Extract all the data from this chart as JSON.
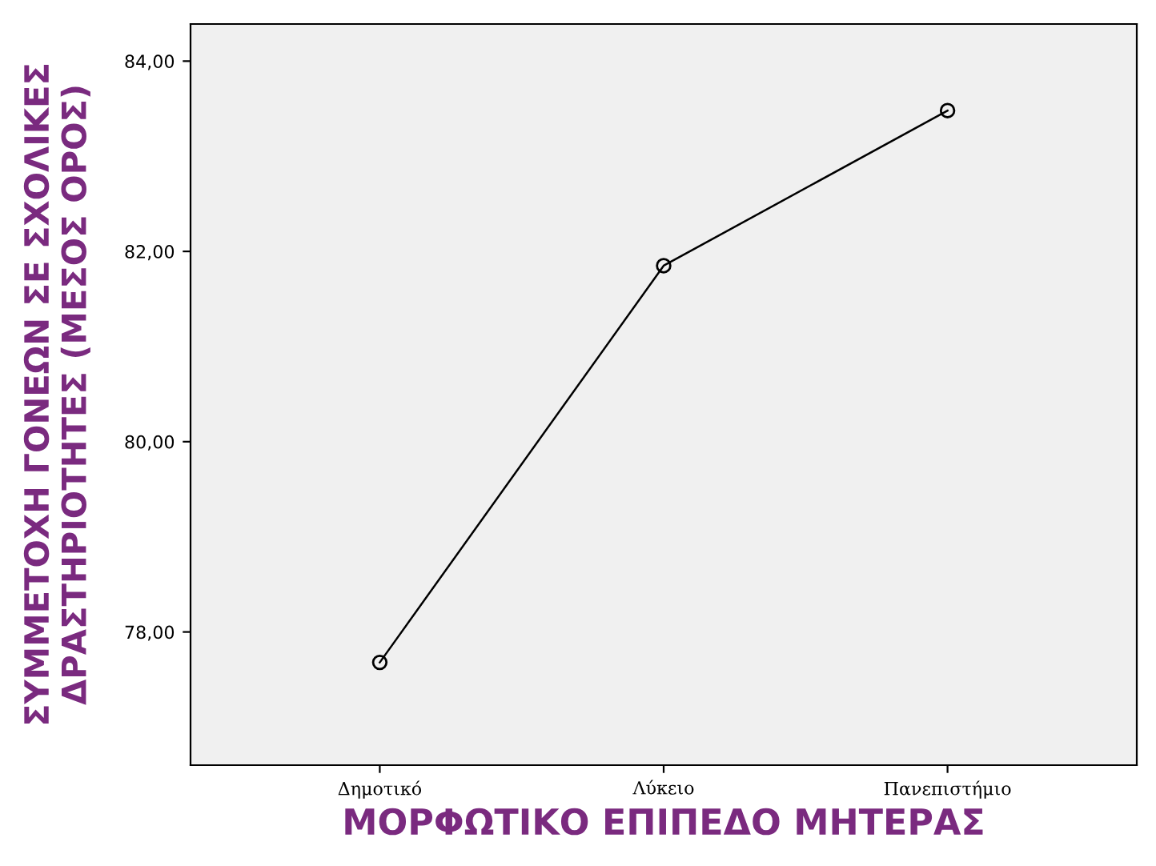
{
  "chart_data": {
    "type": "line",
    "xlabel": "ΜΟΡΦΩΤΙΚΟ ΕΠΙΠΕΔΟ ΜΗΤΕΡΑΣ",
    "ylabel": "ΣΥΜΜΕΤΟΧΗ ΓΟΝΕΩΝ ΣΕ ΣΧΟΛΙΚΕΣ\nΔΡΑΣΤΗΡΙΟΤΗΤΕΣ (ΜΕΣΟΣ ΟΡΟΣ)",
    "categories": [
      "Δημοτικό",
      "Λύκειο",
      "Πανεπιστήμιο"
    ],
    "series": [
      {
        "color": "#000000",
        "values": [
          77.68,
          81.85,
          83.48
        ]
      }
    ],
    "ylim": [
      76.6,
      84.39
    ],
    "yticks": [
      {
        "value": 78,
        "label": "78,00"
      },
      {
        "value": 80,
        "label": "80,00"
      },
      {
        "value": 82,
        "label": "82,00"
      },
      {
        "value": 84,
        "label": "84,00"
      }
    ],
    "marker": "circle",
    "line_style": "solid",
    "grid": false
  }
}
